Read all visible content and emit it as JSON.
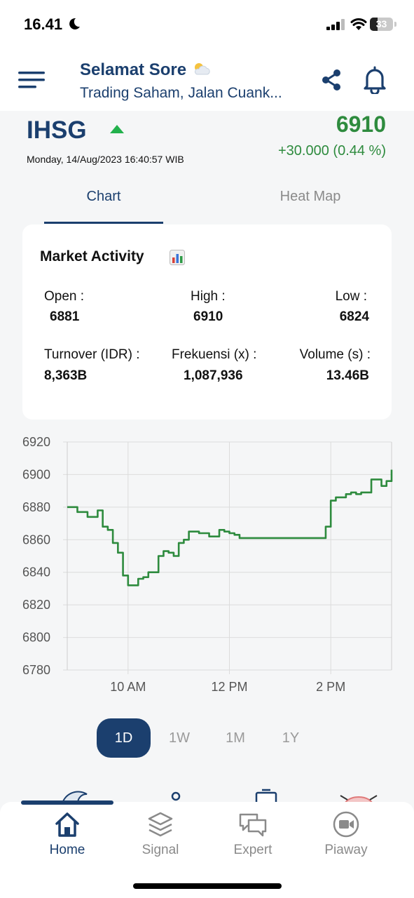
{
  "status_bar": {
    "time": "16.41",
    "battery": "33",
    "battery_level": 0.33
  },
  "header": {
    "greeting": "Selamat Sore",
    "tagline": "Trading Saham, Jalan Cuank..."
  },
  "index": {
    "name": "IHSG",
    "trend": "up",
    "datetime": "Monday, 14/Aug/2023 16:40:57 WIB",
    "price": "6910",
    "change": "+30.000 (0.44 %)"
  },
  "tabs": [
    {
      "label": "Chart",
      "active": true
    },
    {
      "label": "Heat Map",
      "active": false
    }
  ],
  "market_activity": {
    "title": "Market Activity",
    "stats": [
      {
        "label": "Open :",
        "value": "6881"
      },
      {
        "label": "High :",
        "value": "6910"
      },
      {
        "label": "Low :",
        "value": "6824"
      },
      {
        "label": "Turnover (IDR) :",
        "value": "8,363B"
      },
      {
        "label": "Frekuensi (x) :",
        "value": "1,087,936"
      },
      {
        "label": "Volume (s) :",
        "value": "13.46B"
      }
    ]
  },
  "chart_data": {
    "type": "line",
    "ylim": [
      6780,
      6920
    ],
    "y_ticks": [
      "6920",
      "6900",
      "6880",
      "6860",
      "6840",
      "6820",
      "6800",
      "6780"
    ],
    "x_ticks": [
      "10 AM",
      "12 PM",
      "2 PM"
    ],
    "x_tick_hours": [
      10,
      12,
      14
    ],
    "xlim": [
      8.8,
      15.2
    ],
    "grid": true,
    "line_color": "#2e8b3e",
    "series": [
      {
        "x": [
          8.8,
          9.0,
          9.2,
          9.3,
          9.4,
          9.5,
          9.6,
          9.7,
          9.8,
          9.9,
          10.0,
          10.1,
          10.2,
          10.3,
          10.4,
          10.5,
          10.6,
          10.7,
          10.8,
          10.9,
          11.0,
          11.1,
          11.2,
          11.3,
          11.4,
          11.5,
          11.6,
          11.7,
          11.8,
          11.9,
          12.0,
          12.1,
          12.2,
          12.5,
          13.0,
          13.5,
          13.8,
          13.9,
          14.0,
          14.1,
          14.2,
          14.3,
          14.4,
          14.5,
          14.6,
          14.8,
          15.0,
          15.1,
          15.2
        ],
        "y": [
          6880,
          6877,
          6874,
          6874,
          6878,
          6868,
          6866,
          6858,
          6852,
          6838,
          6832,
          6832,
          6836,
          6837,
          6840,
          6840,
          6850,
          6853,
          6852,
          6850,
          6858,
          6860,
          6865,
          6865,
          6864,
          6864,
          6862,
          6862,
          6866,
          6865,
          6864,
          6863,
          6861,
          6861,
          6861,
          6861,
          6861,
          6868,
          6884,
          6886,
          6886,
          6888,
          6889,
          6888,
          6889,
          6897,
          6893,
          6896,
          6903
        ]
      }
    ]
  },
  "range": [
    {
      "label": "1D",
      "active": true
    },
    {
      "label": "1W",
      "active": false
    },
    {
      "label": "1M",
      "active": false
    },
    {
      "label": "1Y",
      "active": false
    }
  ],
  "nav": [
    {
      "label": "Home",
      "icon": "home-icon",
      "active": true
    },
    {
      "label": "Signal",
      "icon": "layers-icon",
      "active": false
    },
    {
      "label": "Expert",
      "icon": "chat-icon",
      "active": false
    },
    {
      "label": "Piaway",
      "icon": "video-icon",
      "active": false
    }
  ]
}
